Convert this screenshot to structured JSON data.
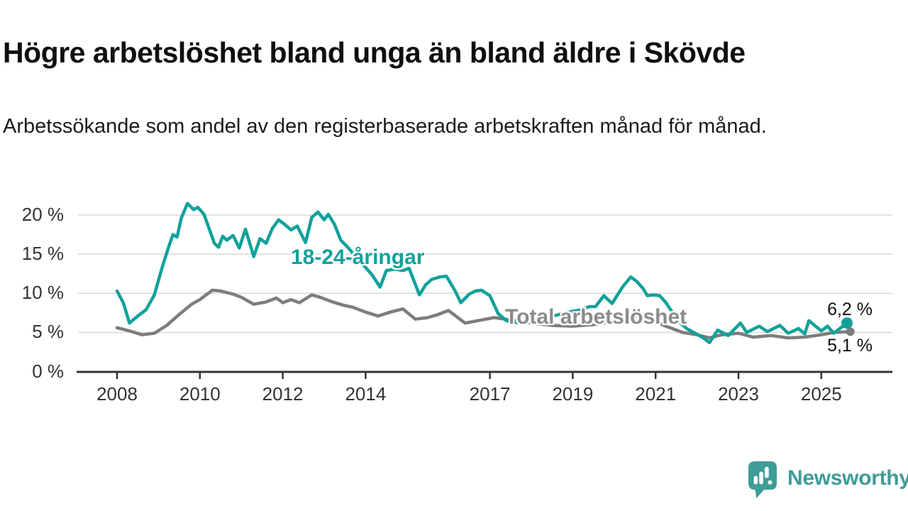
{
  "header": {
    "title": "Högre arbetslöshet bland unga än bland äldre i Skövde",
    "subtitle": "Arbetssökande som andel av den registerbaserade arbetskraften månad för månad."
  },
  "colors": {
    "youth_line": "#10A29A",
    "total_line": "#7D7D7D",
    "total_label": "#8B8B8B",
    "axis": "#333333",
    "gridline": "#DBDBDB",
    "value_label": "#111111",
    "brand_teal": "#3F9C97"
  },
  "chart_data": {
    "type": "line",
    "title": "Högre arbetslöshet bland unga än bland äldre i Skövde",
    "subtitle": "Arbetssökande som andel av den registerbaserade arbetskraften månad för månad.",
    "xlabel": "",
    "ylabel": "",
    "grid": "horizontal",
    "x_ticks": [
      2008,
      2010,
      2012,
      2014,
      2017,
      2019,
      2021,
      2023,
      2025
    ],
    "x_range": [
      2007.55,
      2026.2
    ],
    "y_tick_labels": [
      "0 %",
      "5 %",
      "10 %",
      "15 %",
      "20 %"
    ],
    "y_tick_values": [
      0,
      5,
      10,
      15,
      20
    ],
    "ylim": [
      0,
      22
    ],
    "legend_position": "inline-labels",
    "series": [
      {
        "name": "18-24-åringar",
        "end_label": "6,2 %",
        "end_value": 6.2,
        "end_dot": true,
        "points": [
          [
            2008.0,
            10.3
          ],
          [
            2008.15,
            8.8
          ],
          [
            2008.3,
            6.2
          ],
          [
            2008.5,
            7.1
          ],
          [
            2008.7,
            7.9
          ],
          [
            2008.9,
            9.8
          ],
          [
            2009.1,
            13.5
          ],
          [
            2009.25,
            16.0
          ],
          [
            2009.35,
            17.5
          ],
          [
            2009.45,
            17.2
          ],
          [
            2009.55,
            19.6
          ],
          [
            2009.7,
            21.5
          ],
          [
            2009.85,
            20.7
          ],
          [
            2009.95,
            21.0
          ],
          [
            2010.1,
            20.1
          ],
          [
            2010.35,
            16.4
          ],
          [
            2010.45,
            15.9
          ],
          [
            2010.55,
            17.3
          ],
          [
            2010.65,
            16.8
          ],
          [
            2010.8,
            17.4
          ],
          [
            2010.95,
            15.8
          ],
          [
            2011.1,
            18.2
          ],
          [
            2011.3,
            14.7
          ],
          [
            2011.45,
            17.0
          ],
          [
            2011.6,
            16.4
          ],
          [
            2011.75,
            18.3
          ],
          [
            2011.9,
            19.4
          ],
          [
            2012.05,
            18.8
          ],
          [
            2012.2,
            18.1
          ],
          [
            2012.35,
            18.6
          ],
          [
            2012.55,
            16.5
          ],
          [
            2012.7,
            19.7
          ],
          [
            2012.85,
            20.4
          ],
          [
            2013.0,
            19.4
          ],
          [
            2013.1,
            20.1
          ],
          [
            2013.25,
            18.8
          ],
          [
            2013.4,
            16.8
          ],
          [
            2013.55,
            16.0
          ],
          [
            2013.75,
            14.8
          ],
          [
            2013.95,
            13.6
          ],
          [
            2014.15,
            12.4
          ],
          [
            2014.35,
            10.8
          ],
          [
            2014.5,
            12.9
          ],
          [
            2014.7,
            13.1
          ],
          [
            2014.9,
            12.9
          ],
          [
            2015.05,
            13.2
          ],
          [
            2015.3,
            9.8
          ],
          [
            2015.45,
            11.1
          ],
          [
            2015.6,
            11.8
          ],
          [
            2015.8,
            12.1
          ],
          [
            2015.95,
            12.2
          ],
          [
            2016.15,
            10.4
          ],
          [
            2016.3,
            8.8
          ],
          [
            2016.5,
            9.9
          ],
          [
            2016.65,
            10.3
          ],
          [
            2016.8,
            10.4
          ],
          [
            2017.0,
            9.7
          ],
          [
            2017.2,
            7.4
          ],
          [
            2017.4,
            6.5
          ],
          [
            2017.7,
            6.2
          ],
          [
            2018.0,
            6.5
          ],
          [
            2018.3,
            6.9
          ],
          [
            2018.6,
            7.2
          ],
          [
            2018.9,
            7.6
          ],
          [
            2019.2,
            7.9
          ],
          [
            2019.4,
            8.3
          ],
          [
            2019.55,
            8.3
          ],
          [
            2019.75,
            9.7
          ],
          [
            2019.95,
            8.7
          ],
          [
            2020.2,
            10.8
          ],
          [
            2020.4,
            12.1
          ],
          [
            2020.55,
            11.5
          ],
          [
            2020.7,
            10.6
          ],
          [
            2020.8,
            9.7
          ],
          [
            2020.95,
            9.8
          ],
          [
            2021.1,
            9.7
          ],
          [
            2021.25,
            8.8
          ],
          [
            2021.45,
            7.2
          ],
          [
            2021.6,
            6.2
          ],
          [
            2021.75,
            5.5
          ],
          [
            2021.95,
            4.9
          ],
          [
            2022.15,
            4.3
          ],
          [
            2022.3,
            3.7
          ],
          [
            2022.5,
            5.3
          ],
          [
            2022.75,
            4.6
          ],
          [
            2023.05,
            6.2
          ],
          [
            2023.2,
            5.0
          ],
          [
            2023.5,
            5.8
          ],
          [
            2023.7,
            5.1
          ],
          [
            2024.0,
            5.9
          ],
          [
            2024.2,
            4.9
          ],
          [
            2024.45,
            5.5
          ],
          [
            2024.6,
            4.8
          ],
          [
            2024.7,
            6.5
          ],
          [
            2025.0,
            5.2
          ],
          [
            2025.15,
            5.8
          ],
          [
            2025.3,
            4.9
          ],
          [
            2025.62,
            6.2
          ]
        ]
      },
      {
        "name": "Total arbetslöshet",
        "end_label": "5,1 %",
        "end_value": 5.1,
        "end_dot": true,
        "points": [
          [
            2008.0,
            5.6
          ],
          [
            2008.3,
            5.2
          ],
          [
            2008.6,
            4.7
          ],
          [
            2008.9,
            4.9
          ],
          [
            2009.2,
            5.9
          ],
          [
            2009.5,
            7.3
          ],
          [
            2009.8,
            8.6
          ],
          [
            2010.0,
            9.2
          ],
          [
            2010.3,
            10.4
          ],
          [
            2010.5,
            10.3
          ],
          [
            2010.8,
            9.9
          ],
          [
            2011.0,
            9.5
          ],
          [
            2011.3,
            8.6
          ],
          [
            2011.6,
            8.9
          ],
          [
            2011.85,
            9.4
          ],
          [
            2012.0,
            8.8
          ],
          [
            2012.2,
            9.2
          ],
          [
            2012.4,
            8.8
          ],
          [
            2012.7,
            9.8
          ],
          [
            2012.9,
            9.5
          ],
          [
            2013.2,
            8.9
          ],
          [
            2013.45,
            8.5
          ],
          [
            2013.7,
            8.2
          ],
          [
            2014.0,
            7.6
          ],
          [
            2014.3,
            7.1
          ],
          [
            2014.6,
            7.6
          ],
          [
            2014.9,
            8.0
          ],
          [
            2015.2,
            6.7
          ],
          [
            2015.5,
            6.9
          ],
          [
            2015.75,
            7.3
          ],
          [
            2016.0,
            7.8
          ],
          [
            2016.4,
            6.2
          ],
          [
            2016.7,
            6.5
          ],
          [
            2017.1,
            6.9
          ],
          [
            2017.5,
            6.6
          ],
          [
            2018.0,
            6.2
          ],
          [
            2018.5,
            5.9
          ],
          [
            2019.0,
            5.8
          ],
          [
            2019.5,
            6.0
          ],
          [
            2020.0,
            6.4
          ],
          [
            2020.4,
            7.3
          ],
          [
            2020.8,
            6.9
          ],
          [
            2021.2,
            5.9
          ],
          [
            2021.65,
            5.0
          ],
          [
            2022.0,
            4.7
          ],
          [
            2022.3,
            4.3
          ],
          [
            2022.6,
            4.7
          ],
          [
            2023.0,
            4.9
          ],
          [
            2023.35,
            4.4
          ],
          [
            2023.8,
            4.6
          ],
          [
            2024.2,
            4.3
          ],
          [
            2024.6,
            4.4
          ],
          [
            2025.0,
            4.7
          ],
          [
            2025.3,
            5.0
          ],
          [
            2025.7,
            5.1
          ]
        ]
      }
    ]
  },
  "footer": {
    "brand": "Newsworthy"
  }
}
